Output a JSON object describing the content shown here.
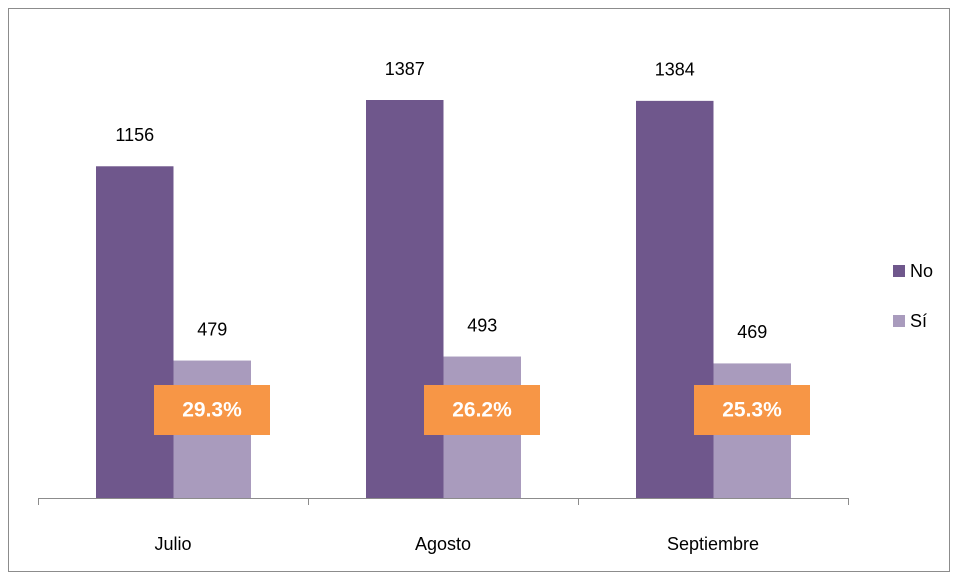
{
  "chart_data": {
    "type": "bar",
    "categories": [
      "Julio",
      "Agosto",
      "Septiembre"
    ],
    "series": [
      {
        "name": "No",
        "color": "#6f578c",
        "values": [
          1156,
          1387,
          1384
        ]
      },
      {
        "name": "Sí",
        "color": "#a99bbd",
        "values": [
          479,
          493,
          469
        ]
      }
    ],
    "annotations": [
      "29.3%",
      "26.2%",
      "25.3%"
    ],
    "annotation_color": "#f79646",
    "legend": "right"
  }
}
